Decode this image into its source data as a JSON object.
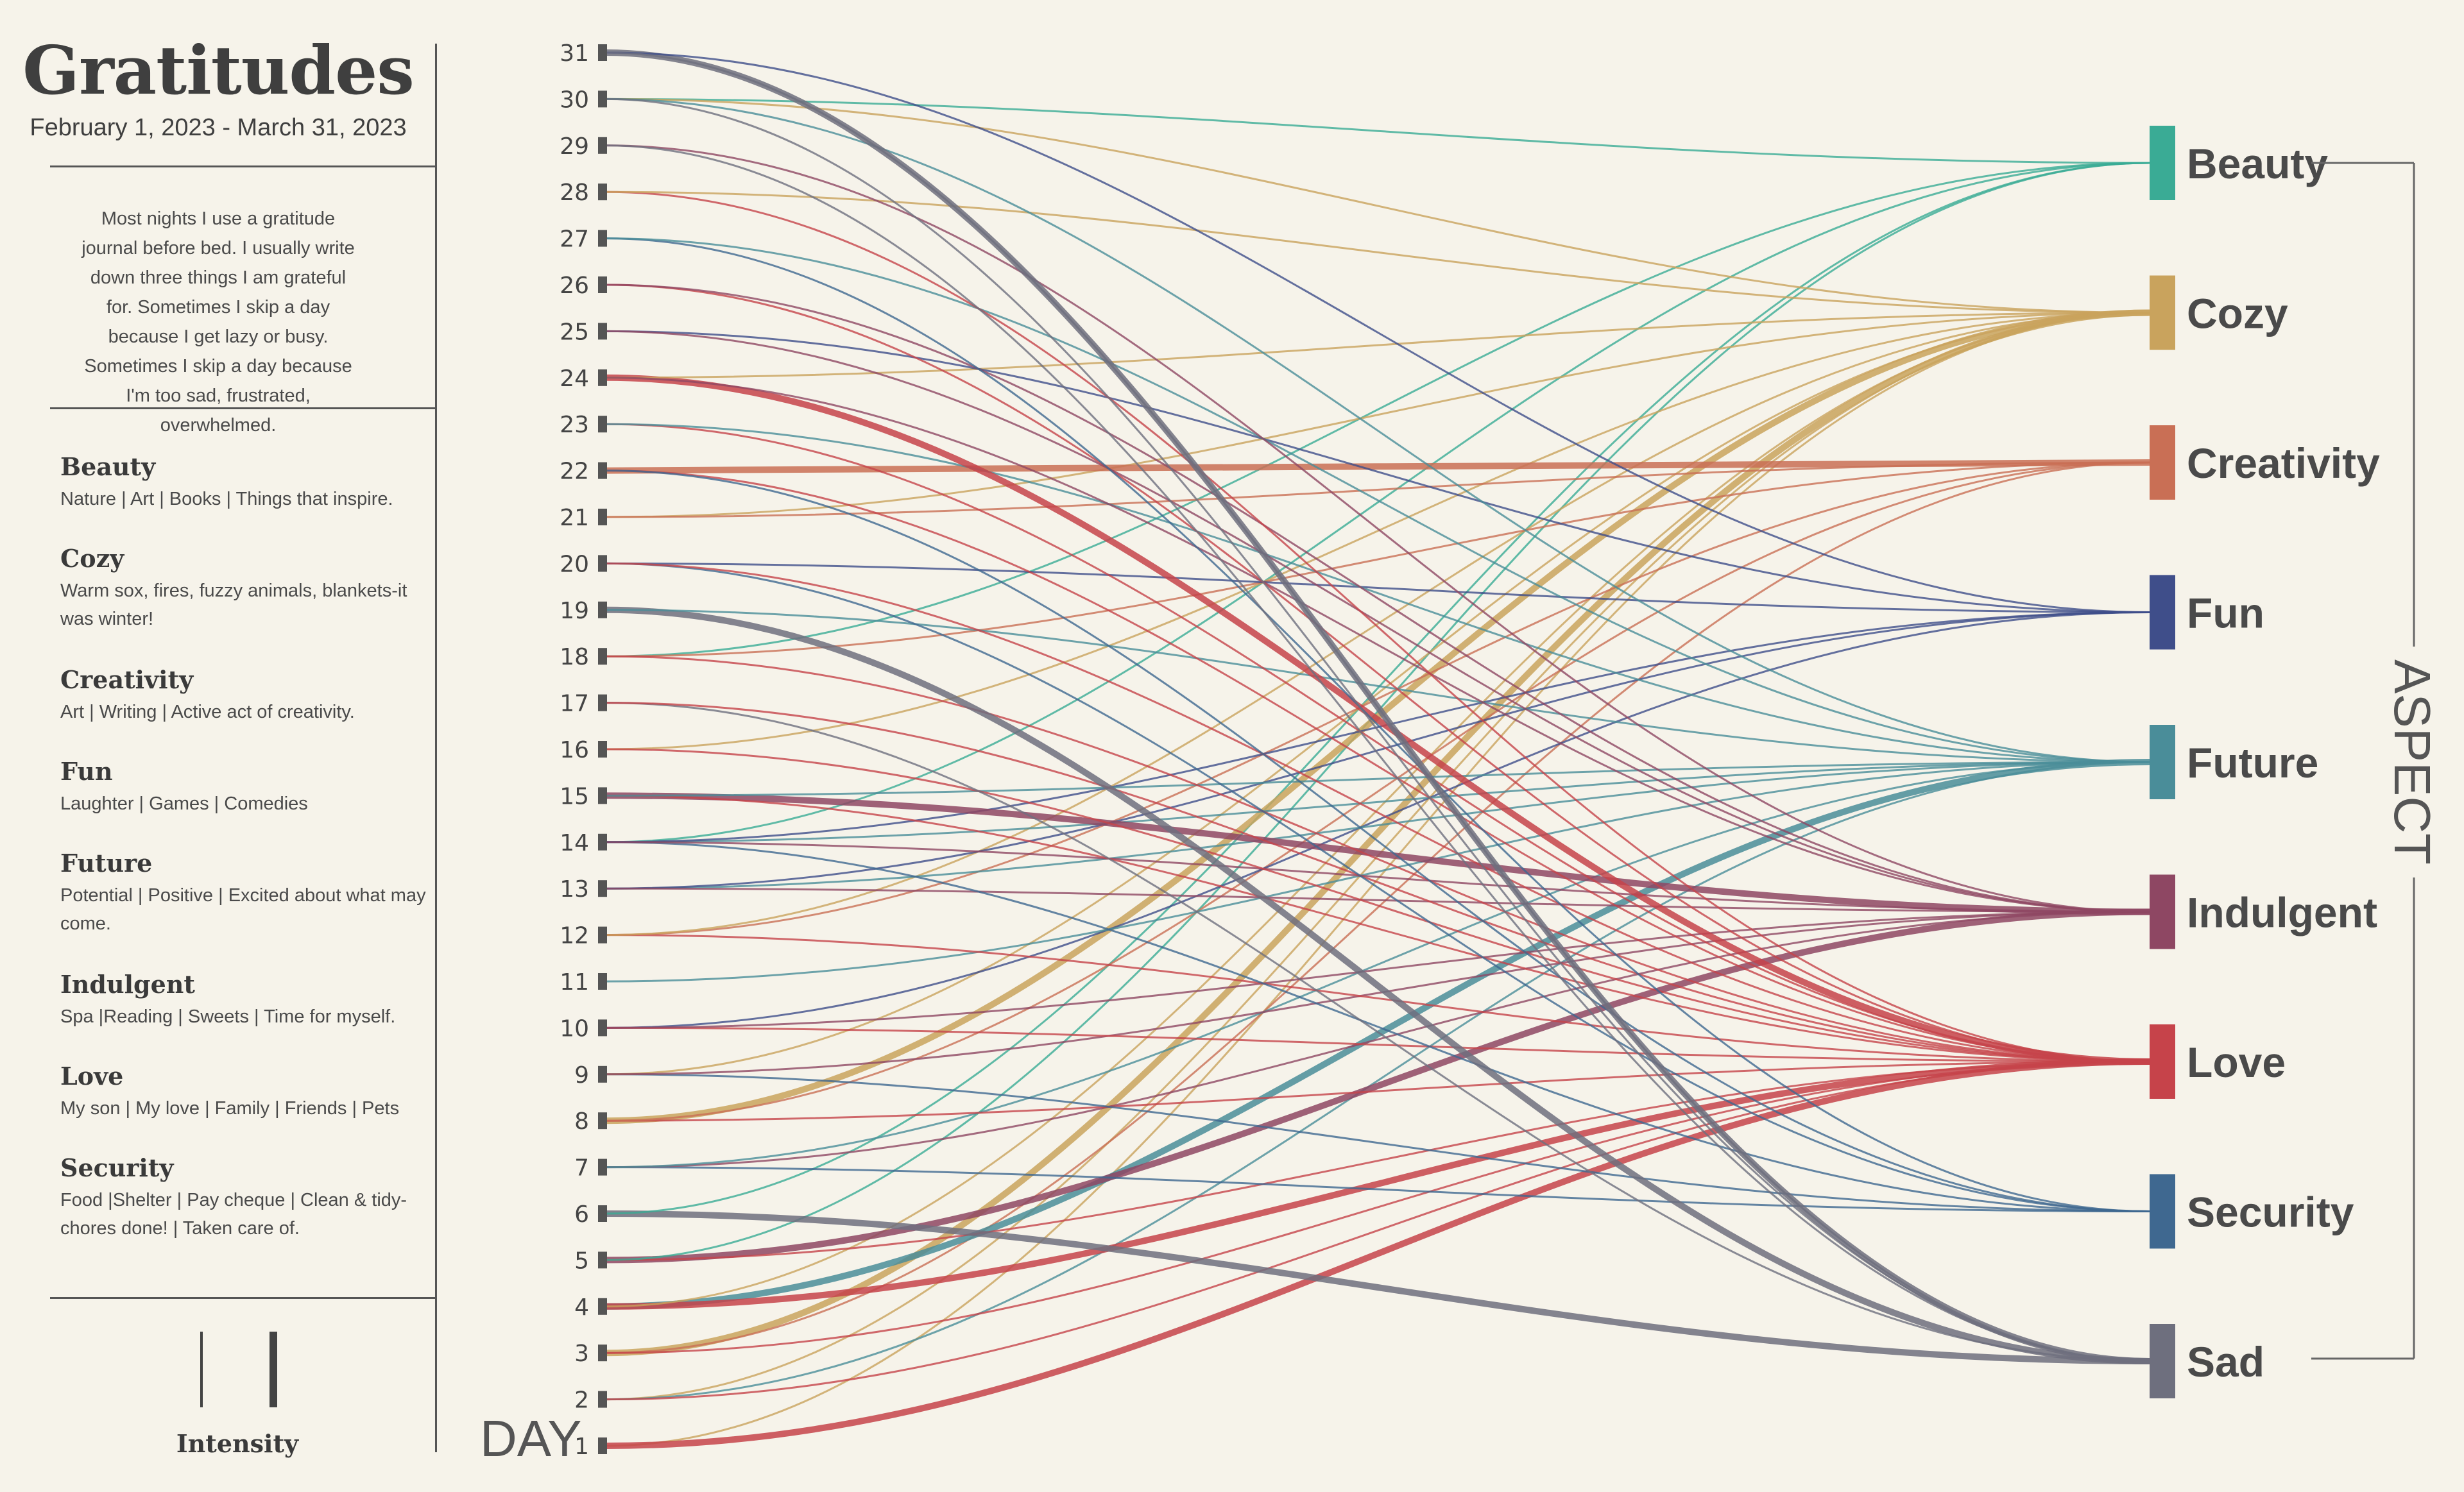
{
  "header": {
    "title": "Gratitudes",
    "date_range": "February 1, 2023 - March 31, 2023"
  },
  "description": "Most nights I use a gratitude journal before bed. I usually write down three things I am grateful for. Sometimes I skip a day because I get lazy or busy. Sometimes I skip a day because I'm too sad, frustrated, overwhelmed.",
  "legend": [
    {
      "name": "Beauty",
      "desc": "Nature | Art | Books | Things that inspire."
    },
    {
      "name": "Cozy",
      "desc": "Warm sox, fires, fuzzy animals, blankets-it was winter!"
    },
    {
      "name": "Creativity",
      "desc": "Art | Writing | Active act of creativity."
    },
    {
      "name": "Fun",
      "desc": "Laughter | Games | Comedies"
    },
    {
      "name": "Future",
      "desc": "Potential | Positive | Excited about what may come."
    },
    {
      "name": "Indulgent",
      "desc": "Spa |Reading | Sweets | Time for myself."
    },
    {
      "name": "Love",
      "desc": "My son | My love | Family | Friends | Pets"
    },
    {
      "name": "Security",
      "desc": "Food |Shelter | Pay cheque | Clean & tidy-chores done! | Taken care of."
    }
  ],
  "intensity_label": "Intensity",
  "chart_data": {
    "type": "bipartite-flow",
    "x_axis_title": "DAY",
    "y_axis_title": "ASPECT",
    "days": [
      1,
      2,
      3,
      4,
      5,
      6,
      7,
      8,
      9,
      10,
      11,
      12,
      13,
      14,
      15,
      16,
      17,
      18,
      19,
      20,
      21,
      22,
      23,
      24,
      25,
      26,
      27,
      28,
      29,
      30,
      31
    ],
    "aspects": [
      {
        "name": "Beauty",
        "color": "#3aab95"
      },
      {
        "name": "Cozy",
        "color": "#c9a35d"
      },
      {
        "name": "Creativity",
        "color": "#c96f55"
      },
      {
        "name": "Fun",
        "color": "#3f4e8a"
      },
      {
        "name": "Future",
        "color": "#4a8d99"
      },
      {
        "name": "Indulgent",
        "color": "#8e4763"
      },
      {
        "name": "Love",
        "color": "#c6434a"
      },
      {
        "name": "Security",
        "color": "#3f6890"
      },
      {
        "name": "Sad",
        "color": "#6e6f7e"
      }
    ],
    "links": [
      {
        "day": 1,
        "aspect": "Cozy",
        "intensity": 1
      },
      {
        "day": 1,
        "aspect": "Love",
        "intensity": 2
      },
      {
        "day": 2,
        "aspect": "Cozy",
        "intensity": 1
      },
      {
        "day": 2,
        "aspect": "Future",
        "intensity": 1
      },
      {
        "day": 2,
        "aspect": "Love",
        "intensity": 1
      },
      {
        "day": 3,
        "aspect": "Cozy",
        "intensity": 2
      },
      {
        "day": 3,
        "aspect": "Creativity",
        "intensity": 1
      },
      {
        "day": 3,
        "aspect": "Love",
        "intensity": 1
      },
      {
        "day": 4,
        "aspect": "Future",
        "intensity": 2
      },
      {
        "day": 4,
        "aspect": "Love",
        "intensity": 2
      },
      {
        "day": 4,
        "aspect": "Cozy",
        "intensity": 1
      },
      {
        "day": 5,
        "aspect": "Indulgent",
        "intensity": 2
      },
      {
        "day": 5,
        "aspect": "Love",
        "intensity": 1
      },
      {
        "day": 5,
        "aspect": "Beauty",
        "intensity": 1
      },
      {
        "day": 6,
        "aspect": "Sad",
        "intensity": 2
      },
      {
        "day": 6,
        "aspect": "Beauty",
        "intensity": 1
      },
      {
        "day": 7,
        "aspect": "Security",
        "intensity": 1
      },
      {
        "day": 7,
        "aspect": "Indulgent",
        "intensity": 1
      },
      {
        "day": 7,
        "aspect": "Future",
        "intensity": 1
      },
      {
        "day": 8,
        "aspect": "Cozy",
        "intensity": 2
      },
      {
        "day": 8,
        "aspect": "Love",
        "intensity": 1
      },
      {
        "day": 8,
        "aspect": "Creativity",
        "intensity": 1
      },
      {
        "day": 9,
        "aspect": "Security",
        "intensity": 1
      },
      {
        "day": 9,
        "aspect": "Cozy",
        "intensity": 1
      },
      {
        "day": 9,
        "aspect": "Indulgent",
        "intensity": 1
      },
      {
        "day": 10,
        "aspect": "Fun",
        "intensity": 1
      },
      {
        "day": 10,
        "aspect": "Love",
        "intensity": 1
      },
      {
        "day": 10,
        "aspect": "Indulgent",
        "intensity": 1
      },
      {
        "day": 11,
        "aspect": "Future",
        "intensity": 1
      },
      {
        "day": 12,
        "aspect": "Creativity",
        "intensity": 1
      },
      {
        "day": 12,
        "aspect": "Love",
        "intensity": 1
      },
      {
        "day": 12,
        "aspect": "Cozy",
        "intensity": 1
      },
      {
        "day": 13,
        "aspect": "Future",
        "intensity": 1
      },
      {
        "day": 13,
        "aspect": "Fun",
        "intensity": 1
      },
      {
        "day": 13,
        "aspect": "Indulgent",
        "intensity": 1
      },
      {
        "day": 14,
        "aspect": "Beauty",
        "intensity": 1
      },
      {
        "day": 14,
        "aspect": "Future",
        "intensity": 1
      },
      {
        "day": 14,
        "aspect": "Security",
        "intensity": 1
      },
      {
        "day": 14,
        "aspect": "Fun",
        "intensity": 1
      },
      {
        "day": 14,
        "aspect": "Indulgent",
        "intensity": 1
      },
      {
        "day": 15,
        "aspect": "Indulgent",
        "intensity": 2
      },
      {
        "day": 15,
        "aspect": "Love",
        "intensity": 1
      },
      {
        "day": 15,
        "aspect": "Future",
        "intensity": 1
      },
      {
        "day": 16,
        "aspect": "Cozy",
        "intensity": 1
      },
      {
        "day": 16,
        "aspect": "Love",
        "intensity": 1
      },
      {
        "day": 17,
        "aspect": "Sad",
        "intensity": 1
      },
      {
        "day": 17,
        "aspect": "Love",
        "intensity": 1
      },
      {
        "day": 18,
        "aspect": "Beauty",
        "intensity": 1
      },
      {
        "day": 18,
        "aspect": "Creativity",
        "intensity": 1
      },
      {
        "day": 18,
        "aspect": "Love",
        "intensity": 1
      },
      {
        "day": 19,
        "aspect": "Sad",
        "intensity": 2
      },
      {
        "day": 19,
        "aspect": "Future",
        "intensity": 1
      },
      {
        "day": 20,
        "aspect": "Fun",
        "intensity": 1
      },
      {
        "day": 20,
        "aspect": "Security",
        "intensity": 1
      },
      {
        "day": 20,
        "aspect": "Love",
        "intensity": 1
      },
      {
        "day": 21,
        "aspect": "Cozy",
        "intensity": 1
      },
      {
        "day": 21,
        "aspect": "Creativity",
        "intensity": 1
      },
      {
        "day": 22,
        "aspect": "Creativity",
        "intensity": 2
      },
      {
        "day": 22,
        "aspect": "Love",
        "intensity": 1
      },
      {
        "day": 22,
        "aspect": "Security",
        "intensity": 1
      },
      {
        "day": 23,
        "aspect": "Love",
        "intensity": 1
      },
      {
        "day": 23,
        "aspect": "Future",
        "intensity": 1
      },
      {
        "day": 24,
        "aspect": "Love",
        "intensity": 2
      },
      {
        "day": 24,
        "aspect": "Cozy",
        "intensity": 1
      },
      {
        "day": 24,
        "aspect": "Indulgent",
        "intensity": 1
      },
      {
        "day": 25,
        "aspect": "Fun",
        "intensity": 1
      },
      {
        "day": 25,
        "aspect": "Indulgent",
        "intensity": 1
      },
      {
        "day": 26,
        "aspect": "Love",
        "intensity": 1
      },
      {
        "day": 26,
        "aspect": "Indulgent",
        "intensity": 1
      },
      {
        "day": 27,
        "aspect": "Security",
        "intensity": 1
      },
      {
        "day": 27,
        "aspect": "Future",
        "intensity": 1
      },
      {
        "day": 28,
        "aspect": "Love",
        "intensity": 1
      },
      {
        "day": 28,
        "aspect": "Cozy",
        "intensity": 1
      },
      {
        "day": 29,
        "aspect": "Indulgent",
        "intensity": 1
      },
      {
        "day": 29,
        "aspect": "Sad",
        "intensity": 1
      },
      {
        "day": 30,
        "aspect": "Beauty",
        "intensity": 1
      },
      {
        "day": 30,
        "aspect": "Cozy",
        "intensity": 1
      },
      {
        "day": 30,
        "aspect": "Future",
        "intensity": 1
      },
      {
        "day": 30,
        "aspect": "Sad",
        "intensity": 1
      },
      {
        "day": 31,
        "aspect": "Sad",
        "intensity": 2
      },
      {
        "day": 31,
        "aspect": "Fun",
        "intensity": 1
      },
      {
        "day": 31,
        "aspect": "Sad",
        "intensity": 1
      }
    ]
  }
}
